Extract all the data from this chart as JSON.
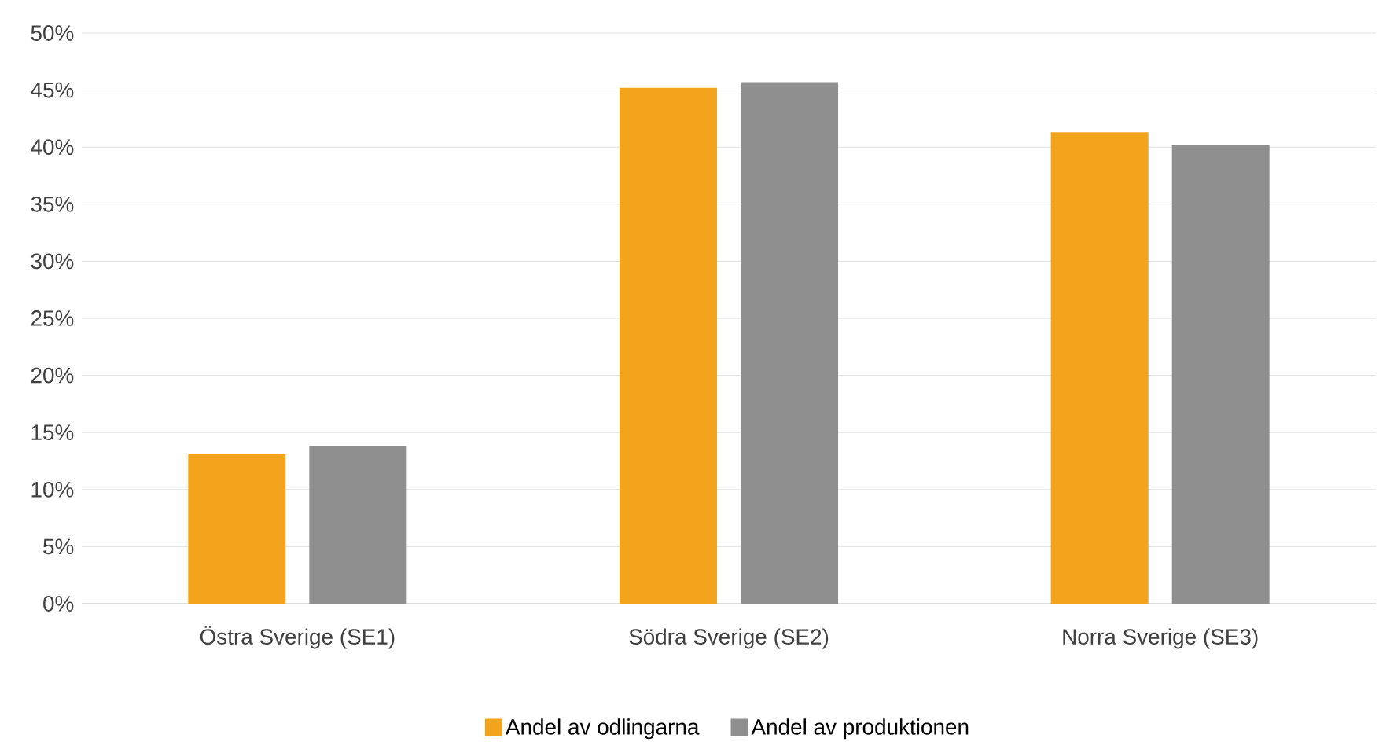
{
  "chart_data": {
    "type": "bar",
    "categories": [
      "Östra Sverige (SE1)",
      "Södra Sverige (SE2)",
      "Norra Sverige (SE3)"
    ],
    "series": [
      {
        "name": "Andel av odlingarna",
        "color": "#f4a41c",
        "values": [
          13.1,
          45.2,
          41.3
        ]
      },
      {
        "name": "Andel av produktionen",
        "color": "#8f8f8f",
        "values": [
          13.8,
          45.7,
          40.2
        ]
      }
    ],
    "ylim": [
      0,
      50
    ],
    "yticks": [
      {
        "value": 0,
        "label": "0%"
      },
      {
        "value": 5,
        "label": "5%"
      },
      {
        "value": 10,
        "label": "10%"
      },
      {
        "value": 15,
        "label": "15%"
      },
      {
        "value": 20,
        "label": "20%"
      },
      {
        "value": 25,
        "label": "25%"
      },
      {
        "value": 30,
        "label": "30%"
      },
      {
        "value": 35,
        "label": "35%"
      },
      {
        "value": 40,
        "label": "40%"
      },
      {
        "value": 45,
        "label": "45%"
      },
      {
        "value": 50,
        "label": "50%"
      }
    ],
    "grid": "y",
    "legend": "bottom"
  }
}
